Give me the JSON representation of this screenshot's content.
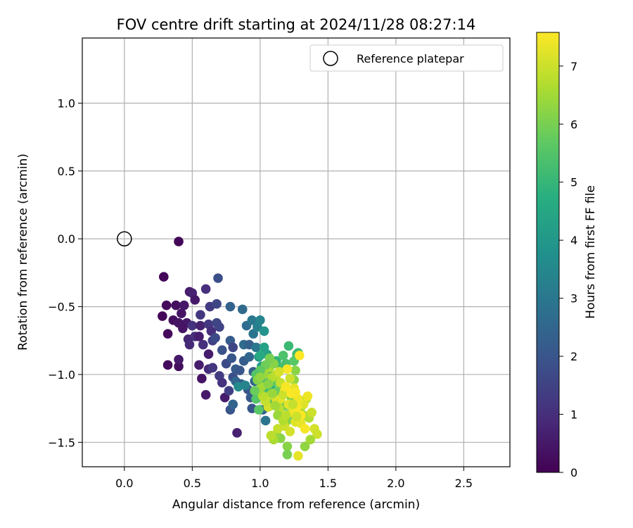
{
  "chart_data": {
    "type": "scatter",
    "title": "FOV centre drift starting at 2024/11/28 08:27:14",
    "xlabel": "Angular distance from reference (arcmin)",
    "ylabel": "Rotation from reference (arcmin)",
    "colorbar_label": "Hours from first FF file",
    "xlim": [
      -0.31,
      2.84
    ],
    "ylim": [
      -1.68,
      1.48
    ],
    "clim": [
      0,
      7.58
    ],
    "xticks": [
      "0.0",
      "0.5",
      "1.0",
      "1.5",
      "2.0",
      "2.5"
    ],
    "yticks": [
      "−1.5",
      "−1.0",
      "−0.5",
      "0.0",
      "0.5",
      "1.0"
    ],
    "colorbar_ticks": [
      "0",
      "1",
      "2",
      "3",
      "4",
      "5",
      "6",
      "7"
    ],
    "colormap": "viridis",
    "grid": true,
    "legend": {
      "position": "top-right",
      "entries": [
        "Reference platepar"
      ]
    },
    "reference_point": {
      "x": 0.0,
      "y": 0.0
    },
    "points": [
      [
        0.4,
        -0.02,
        0.1
      ],
      [
        0.29,
        -0.28,
        0.1
      ],
      [
        0.31,
        -0.49,
        0.2
      ],
      [
        0.28,
        -0.57,
        0.1
      ],
      [
        0.32,
        -0.7,
        0.2
      ],
      [
        0.36,
        -0.6,
        0.3
      ],
      [
        0.38,
        -0.49,
        0.3
      ],
      [
        0.42,
        -0.55,
        0.4
      ],
      [
        0.44,
        -0.49,
        0.5
      ],
      [
        0.48,
        -0.39,
        0.6
      ],
      [
        0.5,
        -0.4,
        0.7
      ],
      [
        0.52,
        -0.45,
        0.5
      ],
      [
        0.46,
        -0.62,
        0.5
      ],
      [
        0.4,
        -0.62,
        0.4
      ],
      [
        0.43,
        -0.66,
        0.4
      ],
      [
        0.47,
        -0.74,
        0.8
      ],
      [
        0.48,
        -0.78,
        0.9
      ],
      [
        0.52,
        -0.72,
        1.0
      ],
      [
        0.5,
        -0.64,
        1.1
      ],
      [
        0.56,
        -0.64,
        0.7
      ],
      [
        0.55,
        -0.72,
        0.6
      ],
      [
        0.58,
        -0.78,
        1.0
      ],
      [
        0.62,
        -0.63,
        1.2
      ],
      [
        0.64,
        -0.68,
        1.0
      ],
      [
        0.6,
        -0.37,
        1.0
      ],
      [
        0.63,
        -0.5,
        1.3
      ],
      [
        0.56,
        -0.56,
        1.2
      ],
      [
        0.68,
        -0.48,
        1.6
      ],
      [
        0.69,
        -0.29,
        1.8
      ],
      [
        0.78,
        -0.5,
        2.4
      ],
      [
        0.87,
        -0.52,
        2.6
      ],
      [
        0.32,
        -0.93,
        0.2
      ],
      [
        0.4,
        -0.94,
        0.3
      ],
      [
        0.4,
        -0.89,
        0.5
      ],
      [
        0.55,
        -0.93,
        0.6
      ],
      [
        0.57,
        -1.03,
        0.4
      ],
      [
        0.62,
        -0.85,
        0.6
      ],
      [
        0.62,
        -0.96,
        0.9
      ],
      [
        0.65,
        -0.95,
        1.2
      ],
      [
        0.6,
        -1.15,
        0.5
      ],
      [
        0.65,
        -0.75,
        1.4
      ],
      [
        0.67,
        -0.73,
        1.7
      ],
      [
        0.68,
        -0.62,
        1.6
      ],
      [
        0.7,
        -0.65,
        1.5
      ],
      [
        0.72,
        -0.82,
        1.9
      ],
      [
        0.7,
        -1.01,
        1.3
      ],
      [
        0.72,
        -1.06,
        1.1
      ],
      [
        0.74,
        -1.17,
        0.6
      ],
      [
        0.75,
        -0.92,
        1.7
      ],
      [
        0.77,
        -1.12,
        1.4
      ],
      [
        0.78,
        -0.75,
        2.2
      ],
      [
        0.79,
        -0.88,
        2.0
      ],
      [
        0.8,
        -1.02,
        1.8
      ],
      [
        0.82,
        -1.05,
        2.5
      ],
      [
        0.82,
        -0.96,
        2.2
      ],
      [
        0.78,
        -1.26,
        2.0
      ],
      [
        0.8,
        -1.22,
        2.4
      ],
      [
        0.83,
        -1.43,
        0.7
      ],
      [
        0.8,
        -0.8,
        1.6
      ],
      [
        0.85,
        -0.97,
        2.0
      ],
      [
        0.86,
        -1.07,
        2.2
      ],
      [
        0.88,
        -0.9,
        2.2
      ],
      [
        0.88,
        -0.78,
        2.6
      ],
      [
        0.9,
        -0.64,
        2.7
      ],
      [
        0.92,
        -0.78,
        2.3
      ],
      [
        0.92,
        -0.87,
        2.5
      ],
      [
        0.94,
        -0.6,
        3.0
      ],
      [
        0.95,
        -0.7,
        2.9
      ],
      [
        0.97,
        -0.8,
        3.0
      ],
      [
        0.98,
        -0.65,
        3.3
      ],
      [
        1.0,
        -0.6,
        3.4
      ],
      [
        0.95,
        -0.98,
        2.3
      ],
      [
        0.96,
        -1.05,
        2.5
      ],
      [
        0.91,
        -1.11,
        2.0
      ],
      [
        0.93,
        -1.17,
        2.1
      ],
      [
        0.94,
        -1.25,
        2.0
      ],
      [
        0.98,
        -1.14,
        2.7
      ],
      [
        1.0,
        -1.12,
        3.0
      ],
      [
        1.02,
        -1.26,
        2.4
      ],
      [
        1.04,
        -1.34,
        2.9
      ],
      [
        0.84,
        -1.09,
        3.6
      ],
      [
        0.89,
        -1.08,
        3.4
      ],
      [
        0.99,
        -0.87,
        4.0
      ],
      [
        1.01,
        -0.94,
        4.2
      ],
      [
        1.03,
        -0.8,
        4.3
      ],
      [
        1.03,
        -0.68,
        3.9
      ],
      [
        1.05,
        -0.85,
        4.3
      ],
      [
        1.06,
        -1.0,
        4.5
      ],
      [
        1.08,
        -1.1,
        4.8
      ],
      [
        1.1,
        -1.2,
        5.0
      ],
      [
        1.12,
        -0.9,
        4.9
      ],
      [
        1.15,
        -0.95,
        5.2
      ],
      [
        1.17,
        -0.86,
        5.4
      ],
      [
        1.19,
        -0.92,
        5.3
      ],
      [
        1.21,
        -0.79,
        5.1
      ],
      [
        1.25,
        -0.9,
        5.6
      ],
      [
        1.27,
        -0.85,
        5.4
      ],
      [
        1.28,
        -0.84,
        5.1
      ],
      [
        1.0,
        -0.86,
        4.6
      ],
      [
        1.02,
        -1.05,
        5.0
      ],
      [
        1.05,
        -1.13,
        5.3
      ],
      [
        1.06,
        -1.17,
        5.4
      ],
      [
        0.97,
        -1.18,
        5.5
      ],
      [
        0.99,
        -1.26,
        5.6
      ],
      [
        1.1,
        -1.05,
        5.7
      ],
      [
        1.12,
        -1.13,
        5.8
      ],
      [
        1.15,
        -1.08,
        5.9
      ],
      [
        1.18,
        -1.23,
        6.0
      ],
      [
        1.2,
        -1.34,
        6.1
      ],
      [
        1.22,
        -1.29,
        5.8
      ],
      [
        1.23,
        -1.17,
        6.1
      ],
      [
        1.25,
        -1.04,
        6.3
      ],
      [
        1.26,
        -0.97,
        6.2
      ],
      [
        1.3,
        -1.24,
        6.5
      ],
      [
        1.32,
        -1.3,
        6.6
      ],
      [
        1.34,
        -1.18,
        6.7
      ],
      [
        1.36,
        -1.32,
        6.7
      ],
      [
        1.38,
        -1.28,
        7.0
      ],
      [
        1.4,
        -1.4,
        7.1
      ],
      [
        1.42,
        -1.44,
        7.0
      ],
      [
        1.37,
        -1.48,
        6.5
      ],
      [
        1.33,
        -1.53,
        6.3
      ],
      [
        1.28,
        -1.6,
        7.3
      ],
      [
        1.2,
        -1.53,
        6.2
      ],
      [
        1.2,
        -1.59,
        6.0
      ],
      [
        1.15,
        -1.47,
        6.2
      ],
      [
        1.12,
        -1.44,
        6.3
      ],
      [
        1.1,
        -1.48,
        6.6
      ],
      [
        1.08,
        -1.45,
        6.8
      ],
      [
        1.13,
        -1.4,
        6.9
      ],
      [
        1.18,
        -1.38,
        7.0
      ],
      [
        1.22,
        -1.42,
        7.1
      ],
      [
        1.26,
        -1.35,
        7.2
      ],
      [
        1.3,
        -1.36,
        7.3
      ],
      [
        1.32,
        -1.22,
        7.2
      ],
      [
        1.28,
        -1.18,
        7.4
      ],
      [
        1.25,
        -1.1,
        7.3
      ],
      [
        1.22,
        -1.03,
        7.0
      ],
      [
        1.2,
        -0.96,
        7.5
      ],
      [
        1.29,
        -0.86,
        7.6
      ],
      [
        1.18,
        -1.12,
        7.4
      ],
      [
        1.15,
        -1.18,
        7.3
      ],
      [
        1.12,
        -1.2,
        7.2
      ],
      [
        1.08,
        -1.15,
        7.0
      ],
      [
        1.06,
        -1.24,
        7.1
      ],
      [
        1.04,
        -1.2,
        6.9
      ],
      [
        1.02,
        -1.16,
        6.8
      ],
      [
        0.99,
        -1.12,
        6.6
      ],
      [
        1.01,
        -1.09,
        6.5
      ],
      [
        1.03,
        -1.0,
        6.4
      ],
      [
        1.07,
        -0.95,
        6.6
      ],
      [
        1.09,
        -1.02,
        6.7
      ],
      [
        1.12,
        -1.0,
        6.8
      ],
      [
        1.15,
        -1.06,
        6.9
      ],
      [
        1.17,
        -1.15,
        7.0
      ],
      [
        1.14,
        -1.25,
        6.8
      ],
      [
        1.16,
        -1.3,
        6.9
      ],
      [
        1.21,
        -1.22,
        7.3
      ],
      [
        1.24,
        -1.28,
        7.4
      ],
      [
        1.27,
        -1.24,
        7.5
      ],
      [
        1.3,
        -1.3,
        7.6
      ],
      [
        1.33,
        -1.4,
        7.5
      ],
      [
        1.35,
        -1.16,
        7.4
      ],
      [
        1.19,
        -1.09,
        7.5
      ],
      [
        1.23,
        -1.14,
        7.6
      ],
      [
        1.26,
        -1.13,
        7.5
      ],
      [
        1.14,
        -0.98,
        7.1
      ],
      [
        1.1,
        -0.92,
        6.2
      ],
      [
        1.07,
        -0.88,
        6.0
      ],
      [
        1.04,
        -0.93,
        5.9
      ],
      [
        1.0,
        -0.97,
        5.7
      ],
      [
        0.97,
        -1.0,
        5.5
      ],
      [
        0.96,
        -1.12,
        5.8
      ],
      [
        0.98,
        -1.04,
        6.1
      ],
      [
        1.0,
        -1.02,
        6.3
      ],
      [
        1.06,
        -1.07,
        6.2
      ],
      [
        1.09,
        -1.14,
        6.4
      ],
      [
        1.11,
        -1.23,
        6.5
      ],
      [
        1.13,
        -1.3,
        6.4
      ],
      [
        1.17,
        -1.34,
        6.7
      ],
      [
        1.19,
        -1.3,
        6.8
      ],
      [
        1.24,
        -1.22,
        6.9
      ],
      [
        1.27,
        -1.31,
        7.0
      ]
    ]
  }
}
